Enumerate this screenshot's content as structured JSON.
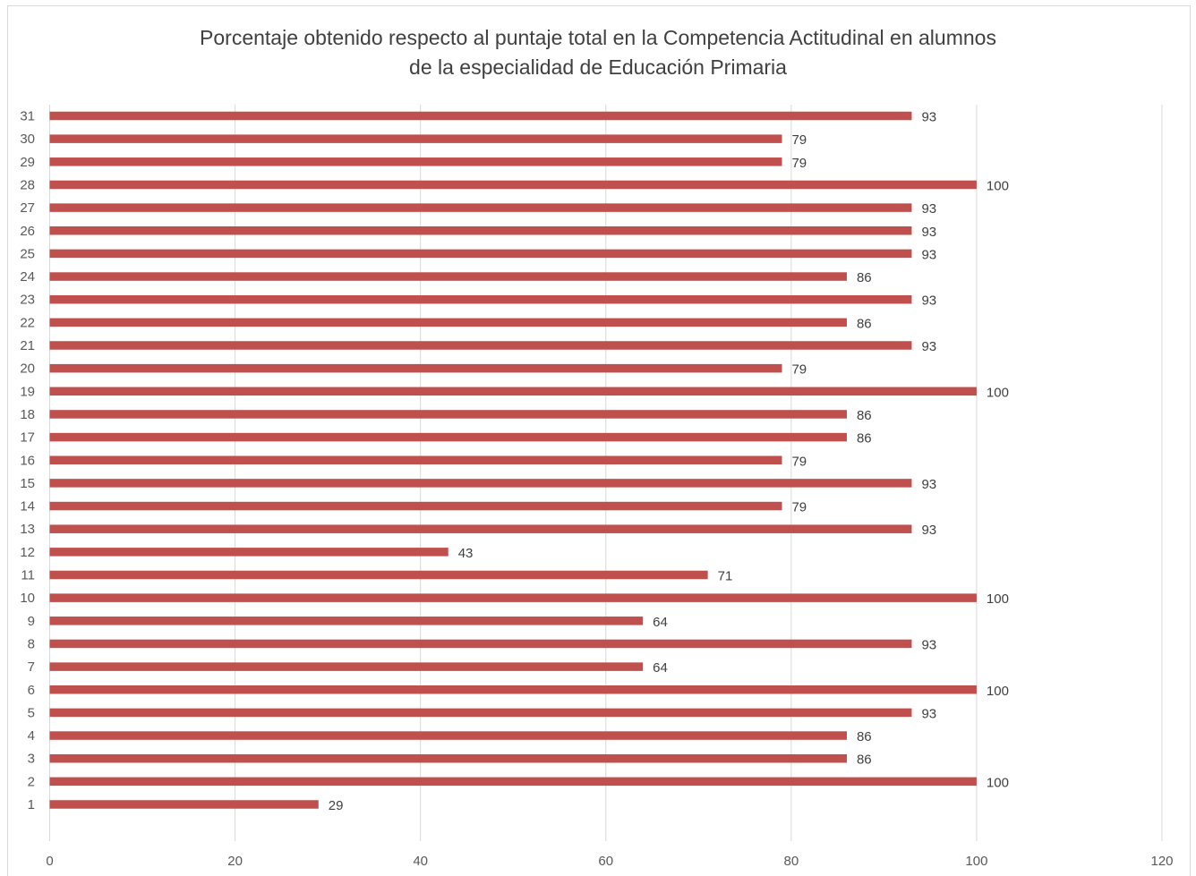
{
  "chart_data": {
    "type": "bar",
    "orientation": "horizontal",
    "title": "Porcentaje  obtenido respecto al puntaje total en la Competencia Actitudinal en alumnos de la especialidad de Educación Primaria",
    "title_lines": [
      "Porcentaje  obtenido respecto al puntaje total en la Competencia Actitudinal en alumnos",
      "de la especialidad de Educación Primaria"
    ],
    "categories": [
      "1",
      "2",
      "3",
      "4",
      "5",
      "6",
      "7",
      "8",
      "9",
      "10",
      "11",
      "12",
      "13",
      "14",
      "15",
      "16",
      "17",
      "18",
      "19",
      "20",
      "21",
      "22",
      "23",
      "24",
      "25",
      "26",
      "27",
      "28",
      "29",
      "30",
      "31"
    ],
    "values": [
      29,
      100,
      86,
      86,
      93,
      100,
      64,
      93,
      64,
      100,
      71,
      43,
      93,
      79,
      93,
      79,
      86,
      86,
      100,
      79,
      93,
      86,
      93,
      86,
      93,
      93,
      93,
      100,
      79,
      79,
      93
    ],
    "xlim": [
      0,
      120
    ],
    "x_ticks": [
      0,
      20,
      40,
      60,
      80,
      100,
      120
    ],
    "xlabel": "",
    "ylabel": "",
    "grid": true,
    "legend": "none",
    "bar_color": "#c0504d",
    "grid_color": "#d9d9d9"
  }
}
